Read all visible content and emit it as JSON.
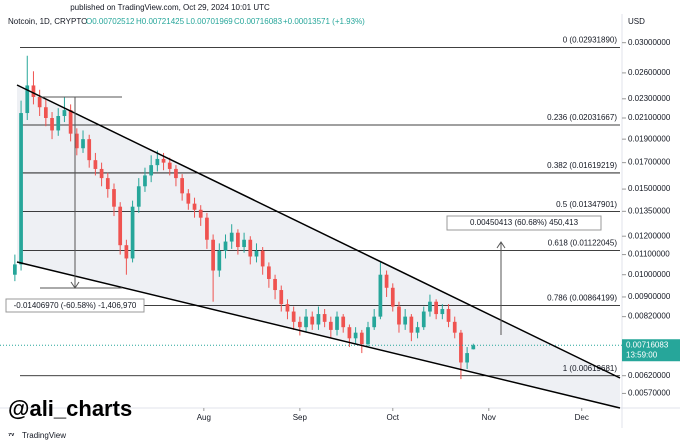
{
  "chart_data": {
    "type": "candlestick",
    "published": "published on TradingView.com, Oct 29, 2024 10:01 UTC",
    "title": "Notcoin, 1D, CRYPTO",
    "ohlc_header": [
      "O0.00702512",
      "H0.00721425",
      "L0.00701969",
      "C0.00716083"
    ],
    "change": "+0.00013571 (+1.93%)",
    "currency": "USD",
    "last_price_label": "0.00716083",
    "countdown": "13:59:00",
    "watermark": "@ali_charts",
    "brand": "TradingView",
    "log_scale": true,
    "up_color": "#26a69a",
    "down_color": "#ef5350",
    "xlim": [
      -4.8,
      196
    ],
    "xticks": [
      {
        "value": 61,
        "label": "Aug"
      },
      {
        "value": 92,
        "label": "Sep"
      },
      {
        "value": 122,
        "label": "Oct"
      },
      {
        "value": 153,
        "label": "Nov"
      },
      {
        "value": 183,
        "label": "Dec"
      }
    ],
    "ylim": [
      0.00527,
      0.0334
    ],
    "yticks": [
      {
        "value": 0.03,
        "label": "0.03000000"
      },
      {
        "value": 0.026,
        "label": "0.02600000"
      },
      {
        "value": 0.023,
        "label": "0.02300000"
      },
      {
        "value": 0.021,
        "label": "0.02100000"
      },
      {
        "value": 0.019,
        "label": "0.01900000"
      },
      {
        "value": 0.017,
        "label": "0.01700000"
      },
      {
        "value": 0.015,
        "label": "0.01500000"
      },
      {
        "value": 0.0135,
        "label": "0.01350000"
      },
      {
        "value": 0.012,
        "label": "0.01200000"
      },
      {
        "value": 0.011,
        "label": "0.01100000"
      },
      {
        "value": 0.01,
        "label": "0.01000000"
      },
      {
        "value": 0.009,
        "label": "0.00900000"
      },
      {
        "value": 0.0082,
        "label": "0.00820000"
      },
      {
        "value": 0.0062,
        "label": "0.00620000"
      },
      {
        "value": 0.0057,
        "label": "0.00570000"
      }
    ],
    "fib_levels": [
      {
        "value": 0.0293189,
        "label": "0 (0.02931890)"
      },
      {
        "value": 0.02031667,
        "label": "0.236 (0.02031667)"
      },
      {
        "value": 0.01619219,
        "label": "0.382 (0.01619219)"
      },
      {
        "value": 0.01347901,
        "label": "0.5 (0.01347901)"
      },
      {
        "value": 0.01122045,
        "label": "0.618 (0.01122045)"
      },
      {
        "value": 0.00864199,
        "label": "0.786 (0.00864199)"
      },
      {
        "value": 0.00619681,
        "label": "1 (0.00619681)"
      }
    ],
    "annotations": [
      "-0.01406970 (-60.58%) -1,406,970",
      "0.00450413 (60.68%) 450,413"
    ],
    "x": [
      0,
      2,
      4,
      6,
      8,
      10,
      12,
      14,
      16,
      18,
      20,
      22,
      24,
      26,
      28,
      30,
      32,
      34,
      36,
      38,
      40,
      42,
      44,
      46,
      48,
      50,
      52,
      54,
      56,
      58,
      60,
      62,
      64,
      66,
      68,
      70,
      72,
      74,
      76,
      78,
      80,
      82,
      84,
      86,
      88,
      90,
      92,
      94,
      96,
      98,
      100,
      102,
      104,
      106,
      108,
      110,
      112,
      114,
      116,
      118,
      120,
      122,
      124,
      126,
      128,
      130,
      132,
      134,
      136,
      138,
      140,
      142,
      144,
      146,
      148
    ],
    "open": [
      0.01,
      0.0105,
      0.0215,
      0.0245,
      0.0232,
      0.0221,
      0.021,
      0.0198,
      0.0212,
      0.0218,
      0.0195,
      0.0182,
      0.019,
      0.0172,
      0.0165,
      0.0158,
      0.015,
      0.0138,
      0.0115,
      0.0108,
      0.0138,
      0.0152,
      0.016,
      0.0168,
      0.0173,
      0.017,
      0.0165,
      0.0158,
      0.0147,
      0.014,
      0.0136,
      0.0131,
      0.0118,
      0.0102,
      0.0112,
      0.0117,
      0.0122,
      0.0114,
      0.0118,
      0.0109,
      0.0112,
      0.0104,
      0.0098,
      0.0093,
      0.0087,
      0.0084,
      0.008,
      0.0078,
      0.0082,
      0.0079,
      0.0083,
      0.008,
      0.0077,
      0.0082,
      0.0078,
      0.0074,
      0.0076,
      0.0072,
      0.0078,
      0.0082,
      0.01,
      0.0094,
      0.0086,
      0.0079,
      0.0082,
      0.0076,
      0.0078,
      0.0084,
      0.0088,
      0.0083,
      0.0085,
      0.008,
      0.0076,
      0.0066,
      0.00702512
    ],
    "high": [
      0.011,
      0.0228,
      0.0282,
      0.0262,
      0.024,
      0.023,
      0.0216,
      0.022,
      0.0232,
      0.0224,
      0.02,
      0.0198,
      0.0194,
      0.0178,
      0.017,
      0.0162,
      0.0154,
      0.0141,
      0.0118,
      0.0142,
      0.0158,
      0.0166,
      0.0176,
      0.018,
      0.0178,
      0.0174,
      0.0168,
      0.0161,
      0.015,
      0.0144,
      0.0139,
      0.0134,
      0.0121,
      0.0116,
      0.0121,
      0.0127,
      0.0124,
      0.0122,
      0.012,
      0.0116,
      0.0114,
      0.0106,
      0.01,
      0.0095,
      0.0089,
      0.0086,
      0.0082,
      0.0085,
      0.0084,
      0.0086,
      0.0085,
      0.0082,
      0.0084,
      0.0083,
      0.0079,
      0.0078,
      0.0077,
      0.008,
      0.0085,
      0.0106,
      0.0102,
      0.0096,
      0.0088,
      0.0085,
      0.0083,
      0.008,
      0.0086,
      0.0091,
      0.0089,
      0.0087,
      0.0087,
      0.0082,
      0.0077,
      0.0071,
      0.00721425
    ],
    "low": [
      0.0097,
      0.0102,
      0.0208,
      0.0224,
      0.0212,
      0.0202,
      0.019,
      0.0193,
      0.0206,
      0.0188,
      0.0176,
      0.0178,
      0.0166,
      0.016,
      0.0152,
      0.0144,
      0.0132,
      0.011,
      0.01,
      0.0106,
      0.0134,
      0.0148,
      0.0155,
      0.0163,
      0.0164,
      0.016,
      0.0152,
      0.0142,
      0.0136,
      0.0131,
      0.0126,
      0.0113,
      0.0088,
      0.0099,
      0.0108,
      0.0113,
      0.011,
      0.0111,
      0.0105,
      0.0106,
      0.01,
      0.0094,
      0.0089,
      0.0084,
      0.0081,
      0.0077,
      0.0075,
      0.0076,
      0.0077,
      0.0077,
      0.0078,
      0.0074,
      0.0075,
      0.0076,
      0.0071,
      0.0072,
      0.0069,
      0.0071,
      0.0077,
      0.0081,
      0.009,
      0.0084,
      0.0076,
      0.0077,
      0.0073,
      0.0074,
      0.0077,
      0.0082,
      0.0081,
      0.0081,
      0.0078,
      0.0074,
      0.0061,
      0.0064,
      0.00701969
    ],
    "close": [
      0.0105,
      0.0215,
      0.0245,
      0.0232,
      0.0221,
      0.021,
      0.0198,
      0.0212,
      0.0218,
      0.0195,
      0.0182,
      0.019,
      0.0172,
      0.0165,
      0.0158,
      0.015,
      0.0138,
      0.0115,
      0.0108,
      0.0138,
      0.0152,
      0.016,
      0.0168,
      0.0173,
      0.017,
      0.0165,
      0.0158,
      0.0147,
      0.014,
      0.0136,
      0.0131,
      0.0118,
      0.0102,
      0.0112,
      0.0117,
      0.0122,
      0.0114,
      0.0118,
      0.0109,
      0.0112,
      0.0104,
      0.0098,
      0.0093,
      0.0087,
      0.0084,
      0.008,
      0.0078,
      0.0082,
      0.0079,
      0.0083,
      0.008,
      0.0077,
      0.0082,
      0.0078,
      0.0074,
      0.0076,
      0.0072,
      0.0078,
      0.0082,
      0.01,
      0.0094,
      0.0086,
      0.0079,
      0.0082,
      0.0076,
      0.0078,
      0.0084,
      0.0088,
      0.0083,
      0.0085,
      0.008,
      0.0076,
      0.0066,
      0.0069,
      0.00716083
    ]
  }
}
